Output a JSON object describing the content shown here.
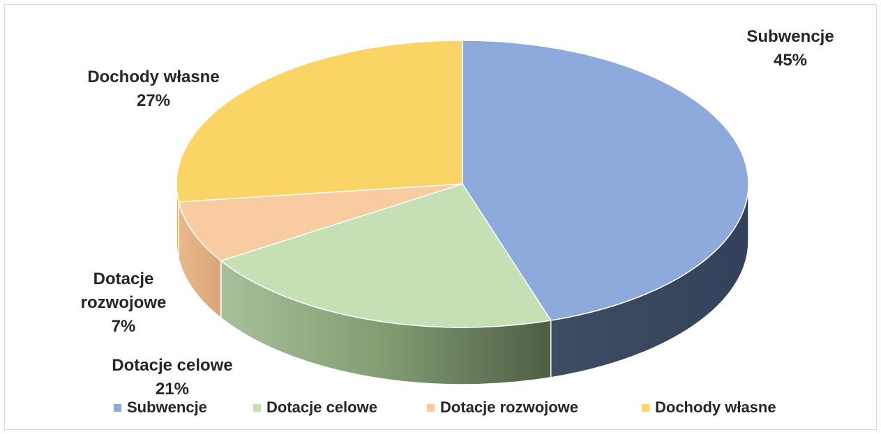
{
  "chart_data": {
    "type": "pie",
    "categories": [
      "Subwencje",
      "Dotacje celowe",
      "Dotacje rozwojowe",
      "Dochody własne"
    ],
    "values": [
      45,
      21,
      7,
      27
    ],
    "label_lines": [
      [
        "Subwencje",
        "45%"
      ],
      [
        "Dotacje celowe",
        "21%"
      ],
      [
        "Dotacje",
        "rozwojowe",
        "7%"
      ],
      [
        "Dochody własne",
        "27%"
      ]
    ],
    "colors": [
      "#8EA9DB",
      "#C5E0B4",
      "#F8CBA0",
      "#FAD565"
    ],
    "side_colors": [
      "#384559",
      "#6E8A5E",
      "#DEAB80",
      "#E0BB4F"
    ],
    "legend_position": "bottom",
    "title": ""
  }
}
